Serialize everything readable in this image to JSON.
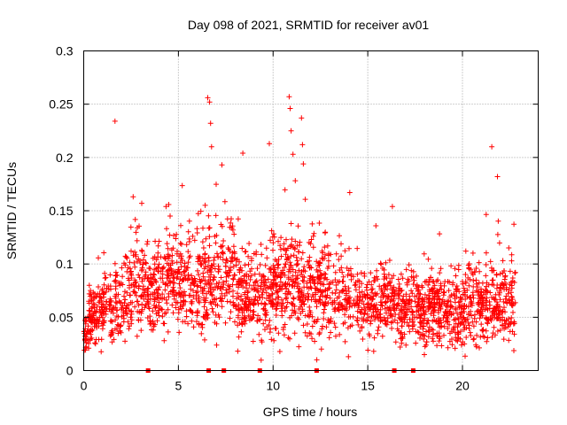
{
  "chart_data": {
    "type": "scatter",
    "title": "Day 098 of 2021, SRMTID for receiver av01",
    "xlabel": "GPS time / hours",
    "ylabel": "SRMTID / TECUs",
    "xlim": [
      0,
      24
    ],
    "ylim": [
      0,
      0.3
    ],
    "x_ticks": [
      0,
      5,
      10,
      15,
      20
    ],
    "y_ticks": [
      0,
      0.05,
      0.1,
      0.15,
      0.2,
      0.25,
      0.3
    ],
    "x_tick_labels": [
      "0",
      "5",
      "10",
      "15",
      "20"
    ],
    "y_tick_labels": [
      "0",
      "0.05",
      "0.1",
      "0.15",
      "0.2",
      "0.25",
      "0.3"
    ],
    "grid": true,
    "marker": "+",
    "series_color": "#ff0000",
    "x_range_of_data": [
      0,
      22.8
    ],
    "n_points": 2600,
    "data_gap_markers_x": [
      3.4,
      6.6,
      7.4,
      9.3,
      12.3,
      16.4,
      17.4
    ],
    "outliers": [
      {
        "x": 1.65,
        "y": 0.234
      },
      {
        "x": 6.55,
        "y": 0.256
      },
      {
        "x": 6.65,
        "y": 0.252
      },
      {
        "x": 6.7,
        "y": 0.232
      },
      {
        "x": 6.75,
        "y": 0.21
      },
      {
        "x": 7.3,
        "y": 0.193
      },
      {
        "x": 8.4,
        "y": 0.204
      },
      {
        "x": 9.8,
        "y": 0.213
      },
      {
        "x": 10.85,
        "y": 0.257
      },
      {
        "x": 10.9,
        "y": 0.246
      },
      {
        "x": 10.95,
        "y": 0.225
      },
      {
        "x": 11.05,
        "y": 0.203
      },
      {
        "x": 11.5,
        "y": 0.237
      },
      {
        "x": 11.55,
        "y": 0.212
      },
      {
        "x": 11.6,
        "y": 0.194
      },
      {
        "x": 14.05,
        "y": 0.167
      },
      {
        "x": 16.3,
        "y": 0.154
      },
      {
        "x": 21.55,
        "y": 0.21
      },
      {
        "x": 21.85,
        "y": 0.182
      }
    ],
    "activity_profile": {
      "hours": [
        0,
        0.3,
        1,
        2,
        3,
        3.5,
        5,
        6.5,
        7.5,
        9,
        10.5,
        11.5,
        13,
        15,
        17,
        19,
        21,
        22.8
      ],
      "mean": [
        0.03,
        0.045,
        0.06,
        0.065,
        0.085,
        0.075,
        0.085,
        0.08,
        0.09,
        0.065,
        0.08,
        0.08,
        0.07,
        0.065,
        0.06,
        0.055,
        0.06,
        0.065
      ],
      "spread": [
        0.01,
        0.02,
        0.03,
        0.035,
        0.045,
        0.035,
        0.035,
        0.045,
        0.045,
        0.03,
        0.045,
        0.045,
        0.035,
        0.03,
        0.03,
        0.03,
        0.035,
        0.035
      ]
    }
  }
}
